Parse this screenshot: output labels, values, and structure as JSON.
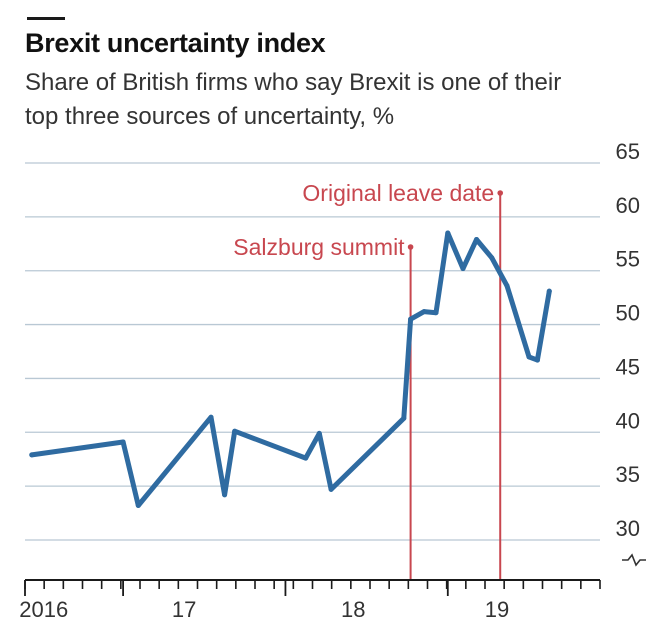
{
  "title": "Brexit uncertainty index",
  "subtitle": "Share of British firms who say Brexit is one of their top three sources of uncertainty, %",
  "colors": {
    "line": "#2f6ba1",
    "annotation": "#c8474f",
    "grid": "#b9c8d4",
    "axis": "#1a1a1a"
  },
  "chart_data": {
    "type": "line",
    "title": "Brexit uncertainty index",
    "subtitle": "Share of British firms who say Brexit is one of their top three sources of uncertainty, %",
    "y_tick_labels": [
      "30",
      "35",
      "40",
      "45",
      "50",
      "55",
      "60",
      "65"
    ],
    "y_ticks": [
      30,
      35,
      40,
      45,
      50,
      55,
      60,
      65
    ],
    "ylim": [
      27,
      65
    ],
    "y_axis_side": "right",
    "y_axis_break": true,
    "x_range": [
      2016.0,
      2019.4
    ],
    "x_tick_labels": [
      {
        "label": "2016",
        "x": 2016.17
      },
      {
        "label": "17",
        "x": 2017.0
      },
      {
        "label": "18",
        "x": 2018.0
      },
      {
        "label": "19",
        "x": 2018.85
      }
    ],
    "grid": true,
    "series": [
      {
        "x": [
          2016.04,
          2016.58,
          2016.67,
          2017.1,
          2017.18,
          2017.24,
          2017.66,
          2017.74,
          2017.81,
          2018.24,
          2018.28,
          2018.36,
          2018.43,
          2018.5,
          2018.59,
          2018.67,
          2018.76,
          2018.85,
          2018.98,
          2019.03,
          2019.1
        ],
        "values": [
          37.9,
          39.1,
          33.2,
          41.4,
          34.2,
          40.1,
          37.6,
          39.9,
          34.7,
          41.3,
          50.5,
          51.2,
          51.1,
          58.5,
          55.2,
          57.9,
          56.2,
          53.6,
          47.0,
          46.7,
          53.1
        ]
      }
    ],
    "annotations": [
      {
        "label": "Salzburg summit",
        "x": 2018.28
      },
      {
        "label": "Original leave date",
        "x": 2018.81
      }
    ]
  }
}
